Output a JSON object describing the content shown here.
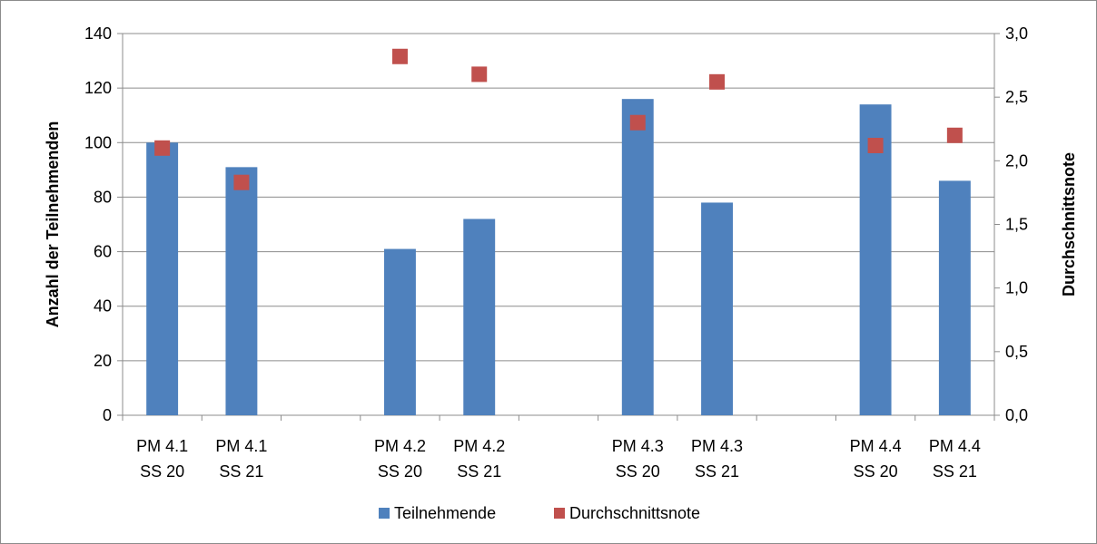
{
  "chart_data": {
    "type": "bar",
    "categories": [
      [
        "PM 4.1",
        "SS 20"
      ],
      [
        "PM 4.1",
        "SS 21"
      ],
      [
        "",
        ""
      ],
      [
        "PM 4.2",
        "SS 20"
      ],
      [
        "PM 4.2",
        "SS 21"
      ],
      [
        "",
        ""
      ],
      [
        "PM 4.3",
        "SS 20"
      ],
      [
        "PM 4.3",
        "SS 21"
      ],
      [
        "",
        ""
      ],
      [
        "PM 4.4",
        "SS 20"
      ],
      [
        "PM 4.4",
        "SS 21"
      ]
    ],
    "series": [
      {
        "name": "Teilnehmende",
        "type": "bar",
        "axis": "left",
        "color": "#4f81bd",
        "values": [
          100,
          91,
          null,
          61,
          72,
          null,
          116,
          78,
          null,
          114,
          86
        ]
      },
      {
        "name": "Durchschnittsnote",
        "type": "scatter",
        "axis": "right",
        "color": "#c0504d",
        "values": [
          2.1,
          1.83,
          null,
          2.82,
          2.68,
          null,
          2.3,
          2.62,
          null,
          2.12,
          2.2
        ]
      }
    ],
    "ylabel": "Anzahl der Teilnehmenden",
    "y2label": "Durchschnittsnote",
    "ylim": [
      0,
      140
    ],
    "y2lim": [
      0,
      3
    ],
    "yticks": [
      "0",
      "20",
      "40",
      "60",
      "80",
      "100",
      "120",
      "140"
    ],
    "y2ticks": [
      "0,0",
      "0,5",
      "1,0",
      "1,5",
      "2,0",
      "2,5",
      "3,0"
    ],
    "grid": true,
    "legend_position": "bottom"
  }
}
